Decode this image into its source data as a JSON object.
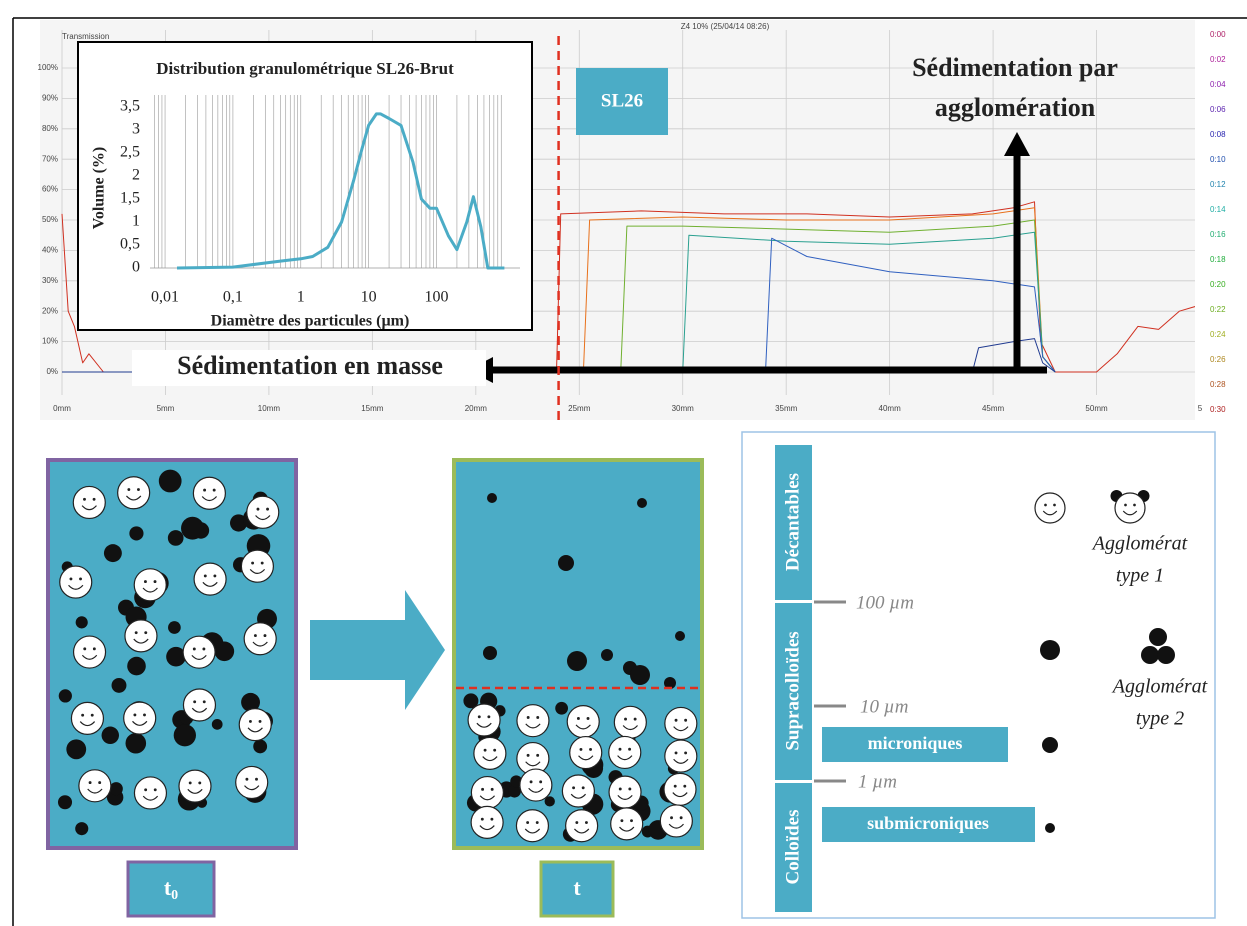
{
  "chart_data": [
    {
      "type": "line",
      "title": "Z4 10% (25/04/14 08:26)",
      "y_label": "Transmission",
      "xlim": [
        0,
        55
      ],
      "ylim": [
        -12.5,
        112.5
      ],
      "xticks": [
        {
          "value": 0,
          "label": "0mm"
        },
        {
          "value": 5,
          "label": "5mm"
        },
        {
          "value": 10,
          "label": "10mm"
        },
        {
          "value": 15,
          "label": "15mm"
        },
        {
          "value": 20,
          "label": "20mm"
        },
        {
          "value": 25,
          "label": "25mm"
        },
        {
          "value": 30,
          "label": "30mm"
        },
        {
          "value": 35,
          "label": "35mm"
        },
        {
          "value": 40,
          "label": "40mm"
        },
        {
          "value": 45,
          "label": "45mm"
        },
        {
          "value": 50,
          "label": "50mm"
        },
        {
          "value": 55,
          "label": "5"
        }
      ],
      "yticks": [
        {
          "value": 0,
          "label": "0%"
        },
        {
          "value": 10,
          "label": "10%"
        },
        {
          "value": 20,
          "label": "20%"
        },
        {
          "value": 30,
          "label": "30%"
        },
        {
          "value": 40,
          "label": "40%"
        },
        {
          "value": 50,
          "label": "50%"
        },
        {
          "value": 60,
          "label": "60%"
        },
        {
          "value": 70,
          "label": "70%"
        },
        {
          "value": 80,
          "label": "80%"
        },
        {
          "value": 90,
          "label": "90%"
        },
        {
          "value": 100,
          "label": "100%"
        }
      ],
      "grid": true,
      "marker_x": 24,
      "time_labels": [
        "0:00",
        "0:02",
        "0:04",
        "0:06",
        "0:08",
        "0:10",
        "0:12",
        "0:14",
        "0:16",
        "0:18",
        "0:20",
        "0:22",
        "0:24",
        "0:26",
        "0:28",
        "0:30"
      ],
      "series": [
        {
          "color": "#d03020",
          "x": [
            0,
            0.3,
            0.6,
            1,
            1.3,
            2,
            23.9,
            24.1,
            28,
            32,
            36,
            40,
            44,
            46,
            47,
            47.3,
            48,
            49,
            50,
            51,
            52,
            53,
            54,
            55
          ],
          "values": [
            52,
            20,
            15,
            3,
            6,
            0,
            0,
            52,
            53,
            52,
            52,
            51,
            52,
            54,
            56,
            10,
            0,
            0,
            0,
            6,
            15,
            14,
            20,
            22
          ]
        },
        {
          "color": "#e8701a",
          "x": [
            0,
            25.2,
            25.5,
            30,
            35,
            40,
            45,
            47,
            47.4,
            48
          ],
          "values": [
            0,
            0,
            50,
            51,
            50,
            50,
            52,
            54,
            5,
            0
          ]
        },
        {
          "color": "#70b030",
          "x": [
            0,
            27,
            27.3,
            30,
            35,
            40,
            45,
            47,
            47.4,
            48
          ],
          "values": [
            0,
            0,
            48,
            48,
            47,
            46,
            48,
            50,
            5,
            0
          ]
        },
        {
          "color": "#2aa090",
          "x": [
            0,
            30,
            30.3,
            35,
            40,
            45,
            47,
            47.4,
            48
          ],
          "values": [
            0,
            0,
            45,
            43,
            42,
            44,
            46,
            5,
            0
          ]
        },
        {
          "color": "#3060c0",
          "x": [
            0,
            34,
            34.3,
            36,
            40,
            45,
            47,
            47.4,
            48
          ],
          "values": [
            0,
            0,
            44,
            38,
            33,
            30,
            28,
            5,
            0
          ]
        },
        {
          "color": "#203a90",
          "x": [
            0,
            44,
            44.3,
            46,
            47,
            47.4,
            48
          ],
          "values": [
            0,
            0,
            8,
            10,
            11,
            3,
            0
          ]
        }
      ]
    },
    {
      "type": "line",
      "title": "Distribution granulométrique SL26-Brut",
      "x_label": "Diamètre des particules (µm)",
      "y_label": "Volume (%)",
      "log_x": true,
      "xlim": [
        0.006,
        1700
      ],
      "ylim": [
        0,
        3.5
      ],
      "xticks": [
        {
          "value": 0.01,
          "label": "0,01"
        },
        {
          "value": 0.1,
          "label": "0,1"
        },
        1,
        10,
        100
      ],
      "yticks": [
        0,
        {
          "value": 0.5,
          "label": "0,5"
        },
        1,
        {
          "value": 1.5,
          "label": "1,5"
        },
        2,
        {
          "value": 2.5,
          "label": "2,5"
        },
        3,
        {
          "value": 3.5,
          "label": "3,5"
        }
      ],
      "grid": "minor-x",
      "series": [
        {
          "color": "#4bacc6",
          "x": [
            0.015,
            0.1,
            0.5,
            1,
            1.5,
            2.5,
            4,
            6,
            8,
            10,
            13,
            15,
            20,
            30,
            45,
            60,
            80,
            100,
            150,
            200,
            280,
            350,
            450,
            570,
            1000
          ],
          "values": [
            0,
            0.02,
            0.15,
            0.2,
            0.25,
            0.45,
            1,
            1.9,
            2.6,
            3.1,
            3.35,
            3.35,
            3.25,
            3.1,
            2.3,
            1.5,
            1.3,
            1.3,
            0.7,
            0.4,
            1.0,
            1.55,
            0.9,
            0,
            0
          ]
        }
      ]
    }
  ],
  "annotations": {
    "sample": "SL26",
    "sed_agglo": [
      "Sédimentation par",
      "agglomération"
    ],
    "sed_masse": "Sédimentation en masse"
  },
  "diagram": {
    "t0": {
      "main": "t",
      "sub": "0"
    },
    "t": "t",
    "classes": [
      "Décantables",
      "Supracolloïdes",
      "Colloïdes"
    ],
    "sizes": [
      "100 µm",
      "10 µm",
      "1 µm"
    ],
    "size_classes": [
      "microniques",
      "submicroniques"
    ],
    "agglomerates": [
      [
        "Agglomérat",
        "type 1"
      ],
      [
        "Agglomérat",
        "type 2"
      ]
    ]
  }
}
